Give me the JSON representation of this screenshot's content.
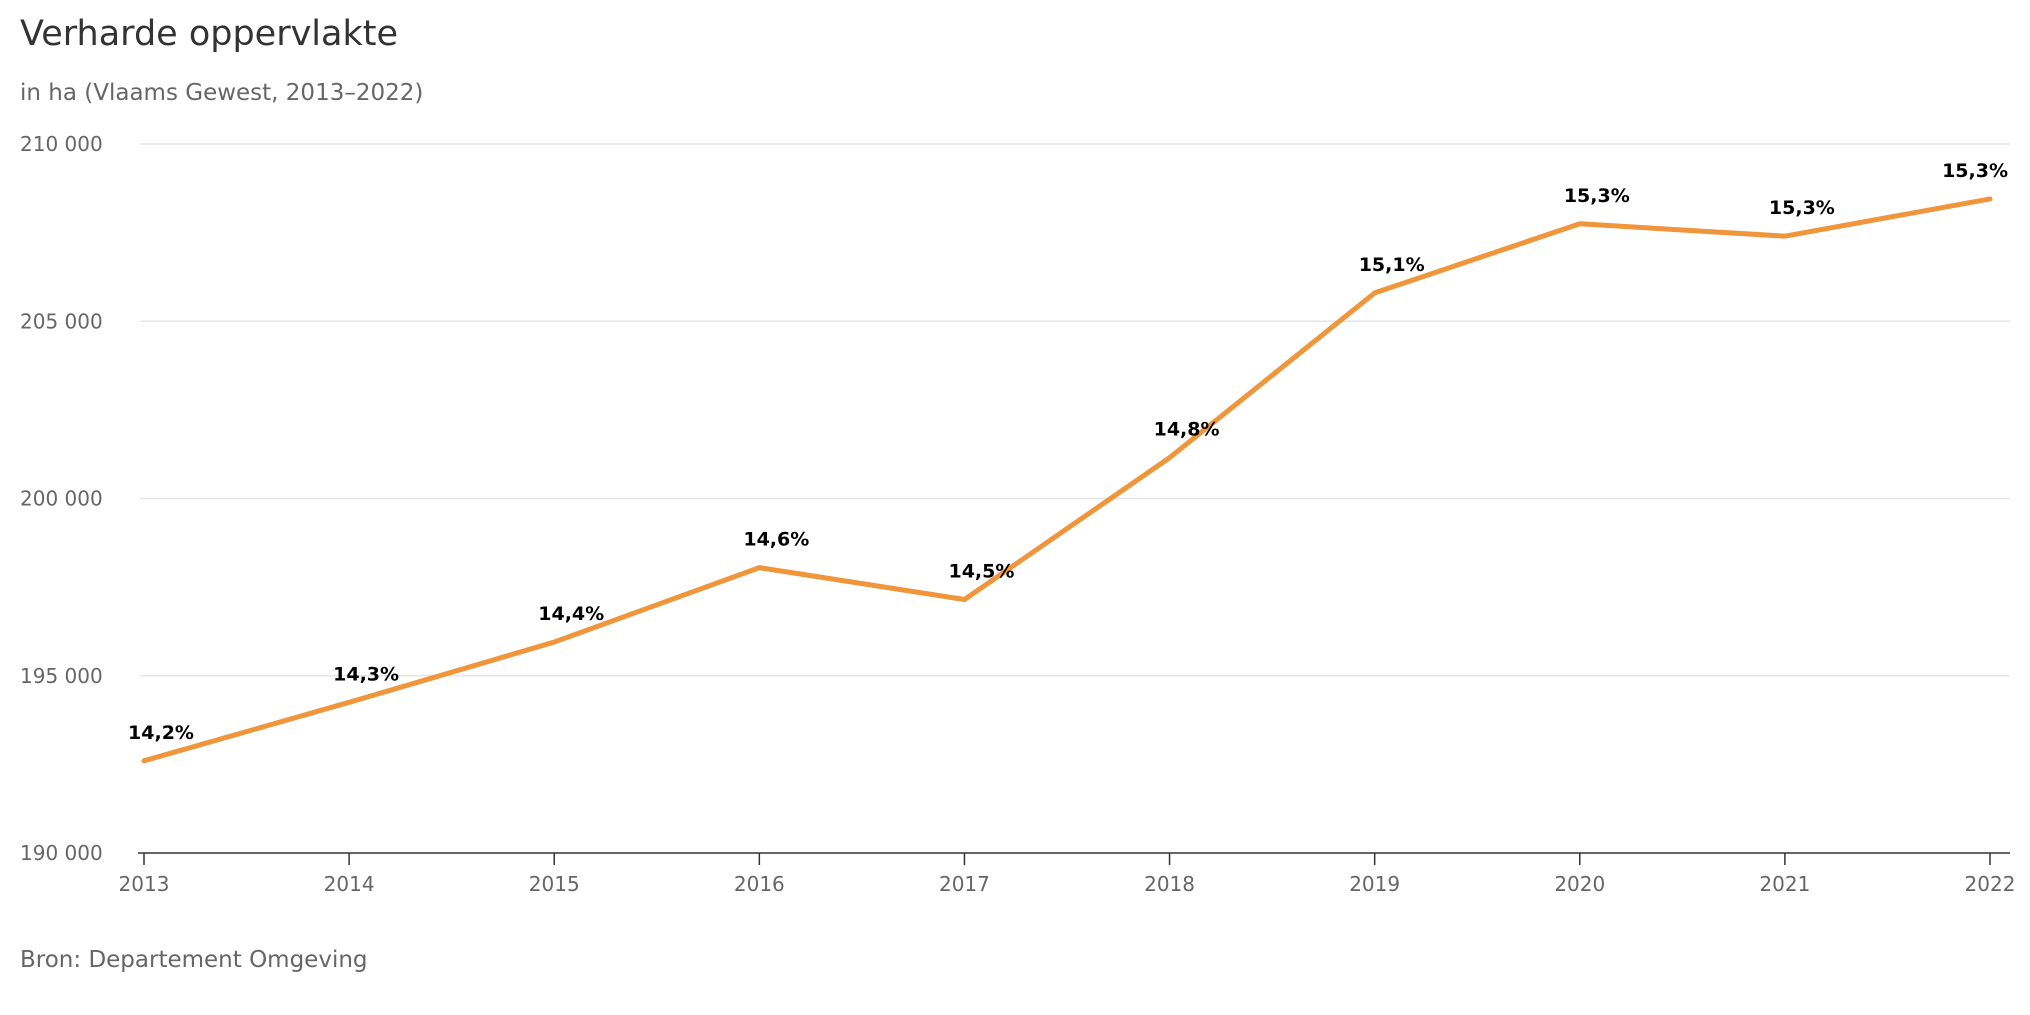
{
  "chart_data": {
    "type": "line",
    "title": "Verharde oppervlakte",
    "subtitle": "in ha (Vlaams Gewest, 2013–2022)",
    "source": "Bron: Departement Omgeving",
    "x": [
      "2013",
      "2014",
      "2015",
      "2016",
      "2017",
      "2018",
      "2019",
      "2020",
      "2021",
      "2022"
    ],
    "series": [
      {
        "values": [
          192600,
          194250,
          195950,
          198050,
          197150,
          201150,
          205800,
          207750,
          207400,
          208450
        ],
        "data_labels": [
          "14,2%",
          "14,3%",
          "14,4%",
          "14,6%",
          "14,5%",
          "14,8%",
          "15,1%",
          "15,3%",
          "15,3%",
          "15,3%"
        ],
        "color": "#f0953a"
      }
    ],
    "ylim": [
      190000,
      210000
    ],
    "yticks": [
      190000,
      195000,
      200000,
      205000,
      210000
    ],
    "ytick_labels": [
      "190 000",
      "195 000",
      "200 000",
      "205 000",
      "210 000"
    ],
    "grid": true,
    "legend": "none"
  }
}
